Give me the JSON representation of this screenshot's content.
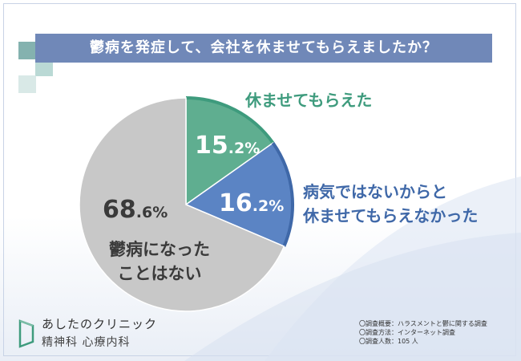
{
  "title": "鬱病を発症して、会社を休ませてもらえましたか？",
  "chart_data": {
    "type": "pie",
    "title": "鬱病を発症して、会社を休ませてもらえましたか？",
    "slices": [
      {
        "label": "休ませてもらえた",
        "value": 15.2,
        "color": "#5fae90",
        "num": "15",
        "unit": ".2%"
      },
      {
        "label": "病気ではないからと休ませてもらえなかった",
        "value": 16.2,
        "color": "#5b84c4",
        "num": "16",
        "unit": ".2%"
      },
      {
        "label": "鬱病になったことはない",
        "value": 68.6,
        "color": "#c8c8c8",
        "num": "68",
        "unit": ".6%"
      }
    ],
    "start": "12 o'clock",
    "direction": "clockwise"
  },
  "callouts": {
    "rested": "休ませてもらえた",
    "sick_line1": "病気ではないからと",
    "sick_line2": "休ませてもらえなかった"
  },
  "inside_labels": {
    "unable_line1": "鬱病になった",
    "unable_line2": "ことはない"
  },
  "logo": {
    "name": "あしたのクリニック",
    "sub": "精神科 心療内科"
  },
  "notes": [
    "〇調査概要：ハラスメントと鬱に関する調査",
    "〇調査方法：インターネット調査",
    "〇調査人数：105 人"
  ],
  "colors": {
    "title_bar": "#7088b8",
    "rested": "#5fae90",
    "rested_edge": "#3e9b7d",
    "sick": "#5b84c4",
    "sick_edge": "#3f68a8",
    "unable": "#c8c8c8"
  }
}
